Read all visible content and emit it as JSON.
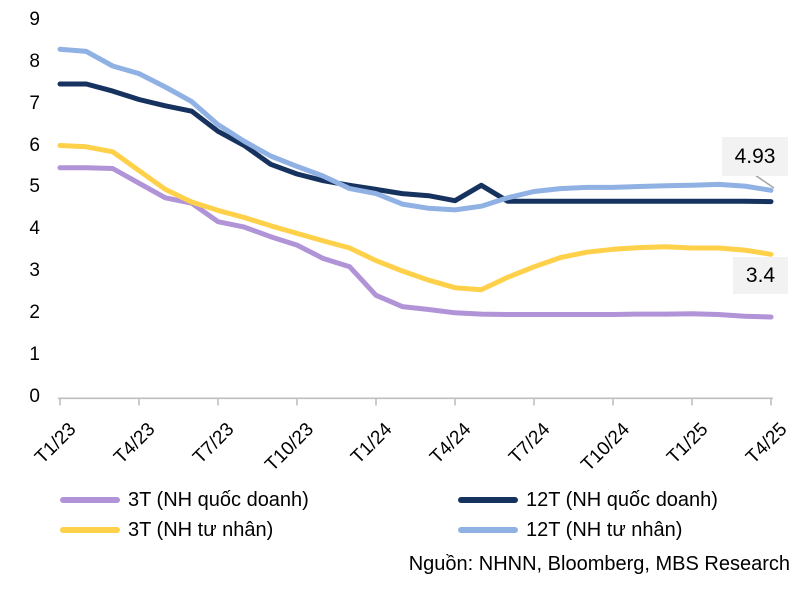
{
  "chart_data": {
    "type": "line",
    "title": "",
    "x_unit": "month",
    "x_range": [
      "T1/23",
      "T4/25"
    ],
    "x_tick_labels": [
      "T1/23",
      "T4/23",
      "T7/23",
      "T10/23",
      "T1/24",
      "T4/24",
      "T7/24",
      "T10/24",
      "T1/25",
      "T4/25"
    ],
    "x_tick_month_indices": [
      0,
      3,
      6,
      9,
      12,
      15,
      18,
      21,
      24,
      27
    ],
    "y_ticks": [
      0,
      1,
      2,
      3,
      4,
      5,
      6,
      7,
      8,
      9
    ],
    "ylim": [
      0,
      9
    ],
    "grid": false,
    "legend_position": "bottom",
    "series": [
      {
        "id": "3t-quoc-doanh",
        "name": "3T (NH quốc doanh)",
        "color": "#b193d7",
        "values": [
          5.47,
          5.47,
          5.45,
          5.1,
          4.75,
          4.62,
          4.18,
          4.05,
          3.82,
          3.62,
          3.3,
          3.1,
          2.42,
          2.15,
          2.08,
          2.0,
          1.97,
          1.96,
          1.96,
          1.96,
          1.96,
          1.96,
          1.97,
          1.97,
          1.98,
          1.96,
          1.92,
          1.9
        ]
      },
      {
        "id": "12t-quoc-doanh",
        "name": "12T (NH quốc doanh)",
        "color": "#16335f",
        "values": [
          7.47,
          7.47,
          7.3,
          7.1,
          6.95,
          6.82,
          6.34,
          6.0,
          5.55,
          5.32,
          5.16,
          5.05,
          4.95,
          4.85,
          4.8,
          4.68,
          5.05,
          4.67,
          4.67,
          4.67,
          4.67,
          4.67,
          4.67,
          4.67,
          4.67,
          4.67,
          4.67,
          4.66
        ]
      },
      {
        "id": "3t-tu-nhan",
        "name": "3T (NH tư nhân)",
        "color": "#ffd04a",
        "values": [
          6.0,
          5.97,
          5.85,
          5.4,
          4.95,
          4.65,
          4.45,
          4.28,
          4.08,
          3.9,
          3.72,
          3.55,
          3.25,
          3.0,
          2.78,
          2.6,
          2.55,
          2.85,
          3.1,
          3.32,
          3.45,
          3.52,
          3.56,
          3.58,
          3.55,
          3.55,
          3.5,
          3.4
        ]
      },
      {
        "id": "12t-tu-nhan",
        "name": "12T (NH tư nhân)",
        "color": "#8fb1e3",
        "values": [
          8.3,
          8.25,
          7.9,
          7.72,
          7.4,
          7.05,
          6.5,
          6.1,
          5.75,
          5.5,
          5.27,
          4.97,
          4.85,
          4.6,
          4.5,
          4.46,
          4.55,
          4.75,
          4.9,
          4.97,
          5.0,
          5.0,
          5.02,
          5.04,
          5.05,
          5.07,
          5.03,
          4.93
        ]
      }
    ],
    "annotations": [
      {
        "text": "4.93",
        "series": "12T (NH tư nhân)",
        "value": 4.93
      },
      {
        "text": "3.4",
        "series": "3T (NH tư nhân)",
        "value": 3.4
      }
    ]
  },
  "legend": {
    "items": [
      {
        "label": "3T (NH quốc doanh)",
        "color": "#b193d7"
      },
      {
        "label": "12T (NH quốc doanh)",
        "color": "#16335f"
      },
      {
        "label": "3T (NH tư nhân)",
        "color": "#ffd04a"
      },
      {
        "label": "12T (NH tư nhân)",
        "color": "#8fb1e3"
      }
    ]
  },
  "source_note": "Nguồn: NHNN, Bloomberg, MBS Research",
  "colors": {
    "axis": "#bfbfbf",
    "annotation_bg": "#f2f2f2",
    "connector": "#a6a6a6",
    "text": "#000000",
    "background": "#ffffff"
  }
}
